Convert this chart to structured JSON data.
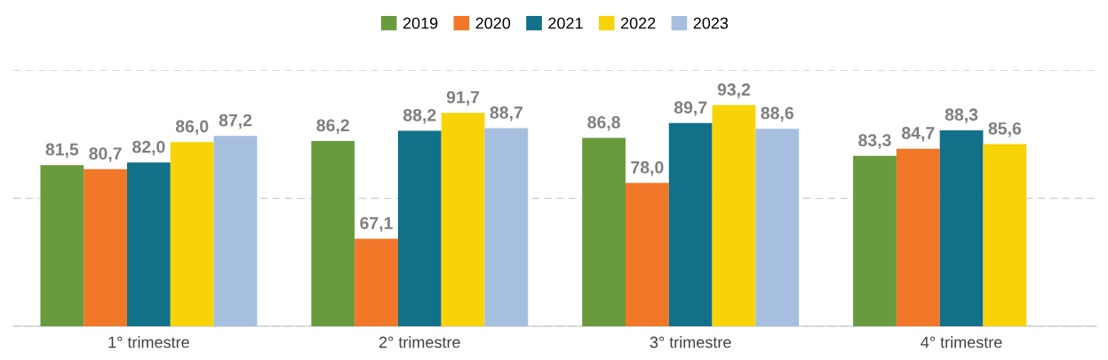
{
  "chart_data": {
    "type": "bar",
    "categories": [
      "1° trimestre",
      "2° trimestre",
      "3° trimestre",
      "4° trimestre"
    ],
    "series": [
      {
        "name": "2019",
        "color": "#6a9a3e",
        "values": [
          81.5,
          86.2,
          86.8,
          83.3
        ],
        "value_labels": [
          "81,5",
          "86,2",
          "86,8",
          "83,3"
        ]
      },
      {
        "name": "2020",
        "color": "#f07828",
        "values": [
          80.7,
          67.1,
          78.0,
          84.7
        ],
        "value_labels": [
          "80,7",
          "67,1",
          "78,0",
          "84,7"
        ]
      },
      {
        "name": "2021",
        "color": "#127089",
        "values": [
          82.0,
          88.2,
          89.7,
          88.3
        ],
        "value_labels": [
          "82,0",
          "88,2",
          "89,7",
          "88,3"
        ]
      },
      {
        "name": "2022",
        "color": "#f7d308",
        "values": [
          86.0,
          91.7,
          93.2,
          85.6
        ],
        "value_labels": [
          "86,0",
          "91,7",
          "93,2",
          "85,6"
        ]
      },
      {
        "name": "2023",
        "color": "#a6bfde",
        "values": [
          87.2,
          88.7,
          88.6,
          null
        ],
        "value_labels": [
          "87,2",
          "88,7",
          "88,6",
          null
        ]
      }
    ],
    "ylim": [
      50,
      100
    ],
    "yticks": [
      {
        "value": 50,
        "label": null
      },
      {
        "value": 75,
        "label": null
      },
      {
        "value": 100,
        "label": null
      }
    ],
    "tick_labels": "x",
    "grid": "y",
    "legend": "top"
  }
}
